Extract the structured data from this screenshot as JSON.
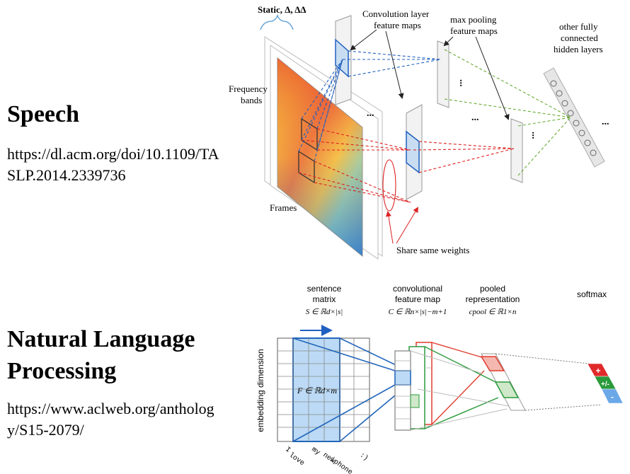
{
  "speech": {
    "title": "Speech",
    "reference": "https://dl.acm.org/doi/10.1109/TASLP.2014.2339736",
    "diagram": {
      "static_label": "Static, Δ, ΔΔ",
      "conv_label_line1": "Convolution layer",
      "conv_label_line2": "feature maps",
      "pool_label_line1": "max pooling",
      "pool_label_line2": "feature maps",
      "fc_label_line1": "other fully",
      "fc_label_line2": "connected",
      "fc_label_line3": "hidden layers",
      "freq_label_line1": "Frequency",
      "freq_label_line2": "bands",
      "frames_label": "Frames",
      "share_label": "Share same weights",
      "ellipsis": "...",
      "colors": {
        "blue": "#2255bb",
        "red": "#dd2222",
        "green": "#66aa33"
      }
    }
  },
  "nlp": {
    "title_line1": "Natural Language",
    "title_line2": "Processing",
    "reference": "https://www.aclweb.org/anthology/S15-2079/",
    "diagram": {
      "sentence_matrix_line1": "sentence",
      "sentence_matrix_line2": "matrix",
      "sentence_matrix_formula": "S ∈ ℝd×|s|",
      "conv_map_line1": "convolutional",
      "conv_map_line2": "feature map",
      "conv_map_formula": "C ∈ ℝn×|s|−m+1",
      "pooled_line1": "pooled",
      "pooled_line2": "representation",
      "pooled_formula": "cpool ∈ ℝ1×n",
      "softmax_label": "softmax",
      "embedding_label": "embedding dimension",
      "filter_formula": "F ∈ ℝd×m",
      "words": [
        "I",
        "love",
        "my",
        "new",
        "iphone",
        ":)"
      ],
      "softmax_classes": [
        "+",
        "+/-",
        "-"
      ],
      "colors": {
        "blue": "#2266bb",
        "red": "#e03c2c",
        "green": "#2a9a3a",
        "light_blue": "#bcdaf5"
      }
    }
  }
}
